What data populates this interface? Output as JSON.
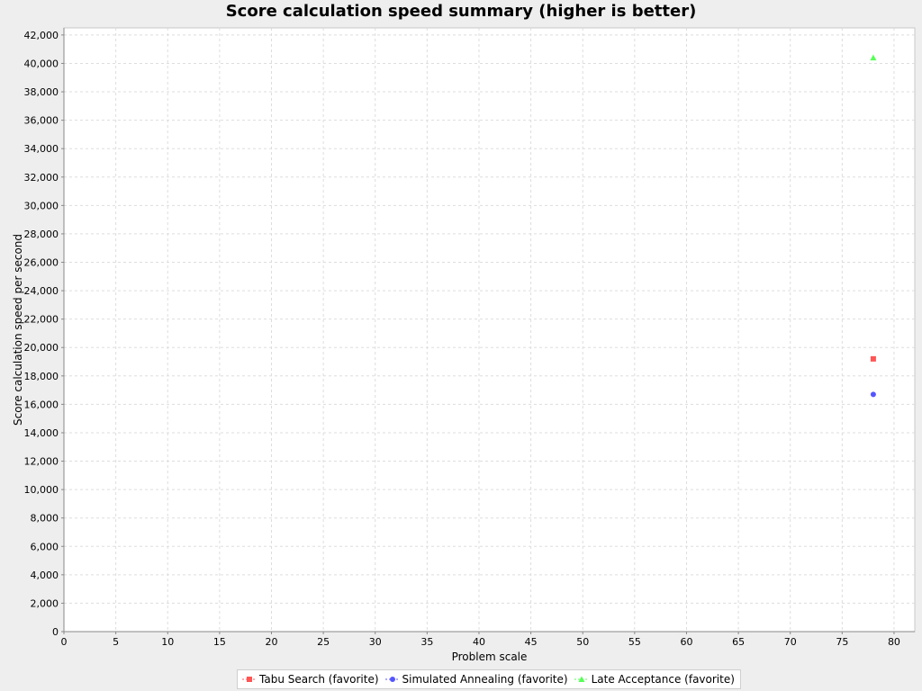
{
  "chart_data": {
    "type": "scatter",
    "title": "Score calculation speed summary (higher is better)",
    "xlabel": "Problem scale",
    "ylabel": "Score calculation speed per second",
    "xlim": [
      0,
      82
    ],
    "ylim": [
      0,
      42500
    ],
    "x_ticks": [
      "0",
      "5",
      "10",
      "15",
      "20",
      "25",
      "30",
      "35",
      "40",
      "45",
      "50",
      "55",
      "60",
      "65",
      "70",
      "75",
      "80"
    ],
    "x_tick_values": [
      0,
      5,
      10,
      15,
      20,
      25,
      30,
      35,
      40,
      45,
      50,
      55,
      60,
      65,
      70,
      75,
      80
    ],
    "y_ticks": [
      "0",
      "2,000",
      "4,000",
      "6,000",
      "8,000",
      "10,000",
      "12,000",
      "14,000",
      "16,000",
      "18,000",
      "20,000",
      "22,000",
      "24,000",
      "26,000",
      "28,000",
      "30,000",
      "32,000",
      "34,000",
      "36,000",
      "38,000",
      "40,000",
      "42,000"
    ],
    "y_tick_values": [
      0,
      2000,
      4000,
      6000,
      8000,
      10000,
      12000,
      14000,
      16000,
      18000,
      20000,
      22000,
      24000,
      26000,
      28000,
      30000,
      32000,
      34000,
      36000,
      38000,
      40000,
      42000
    ],
    "grid": true,
    "legend_position": "bottom",
    "series": [
      {
        "name": "Tabu Search (favorite)",
        "color": "#ff5555",
        "marker": "square",
        "points": [
          {
            "x": 78,
            "y": 19200
          }
        ]
      },
      {
        "name": "Simulated Annealing (favorite)",
        "color": "#5555ff",
        "marker": "circle",
        "points": [
          {
            "x": 78,
            "y": 16700
          }
        ]
      },
      {
        "name": "Late Acceptance (favorite)",
        "color": "#55ff55",
        "marker": "triangle",
        "points": [
          {
            "x": 78,
            "y": 40400
          }
        ]
      }
    ]
  }
}
